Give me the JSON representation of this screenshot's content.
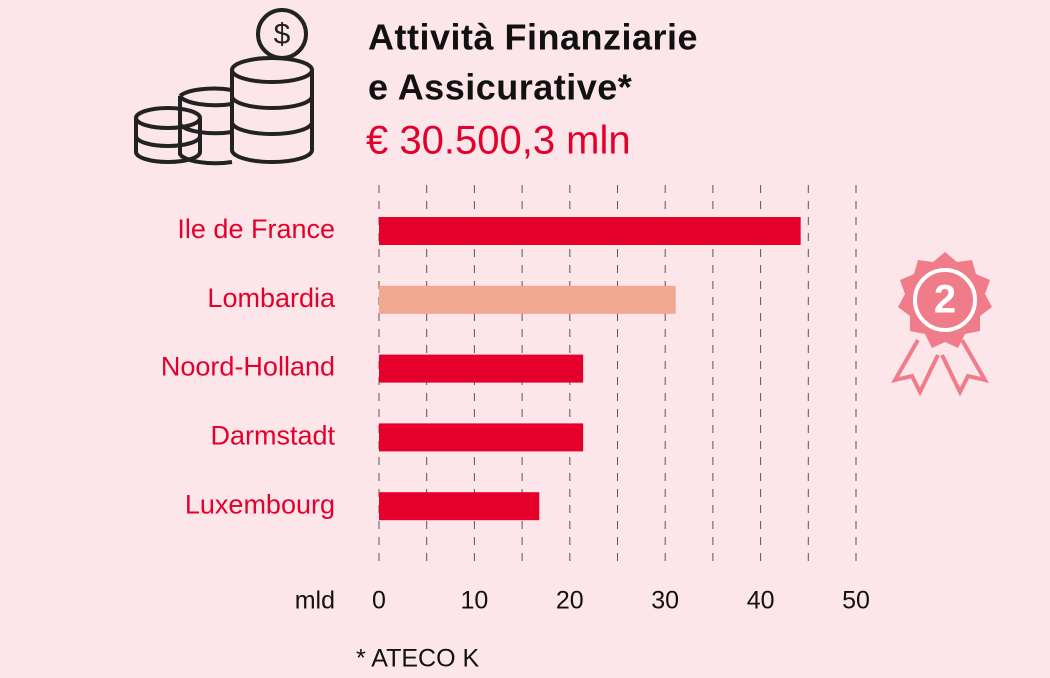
{
  "chart_data": {
    "type": "hbar",
    "title": [
      "Attività Finanziarie",
      "e Assicurative*"
    ],
    "subtitle": "€ 30.500,3 mln",
    "categories": [
      "Ile de France",
      "Lombardia",
      "Noord-Holland",
      "Darmstadt",
      "Luxembourg"
    ],
    "values": [
      44.2,
      31.1,
      21.4,
      21.4,
      16.8
    ],
    "colors": [
      "#e4002b",
      "#f0a890",
      "#e4002b",
      "#e4002b",
      "#e4002b"
    ],
    "xlim": [
      0,
      50
    ],
    "xticks": [
      0,
      10,
      20,
      30,
      40,
      50
    ],
    "minor_xticks": [
      5,
      15,
      25,
      35,
      45
    ],
    "grid": true,
    "x_axis_label": "mld",
    "footnote": "* ATECO K",
    "badge": "2"
  }
}
